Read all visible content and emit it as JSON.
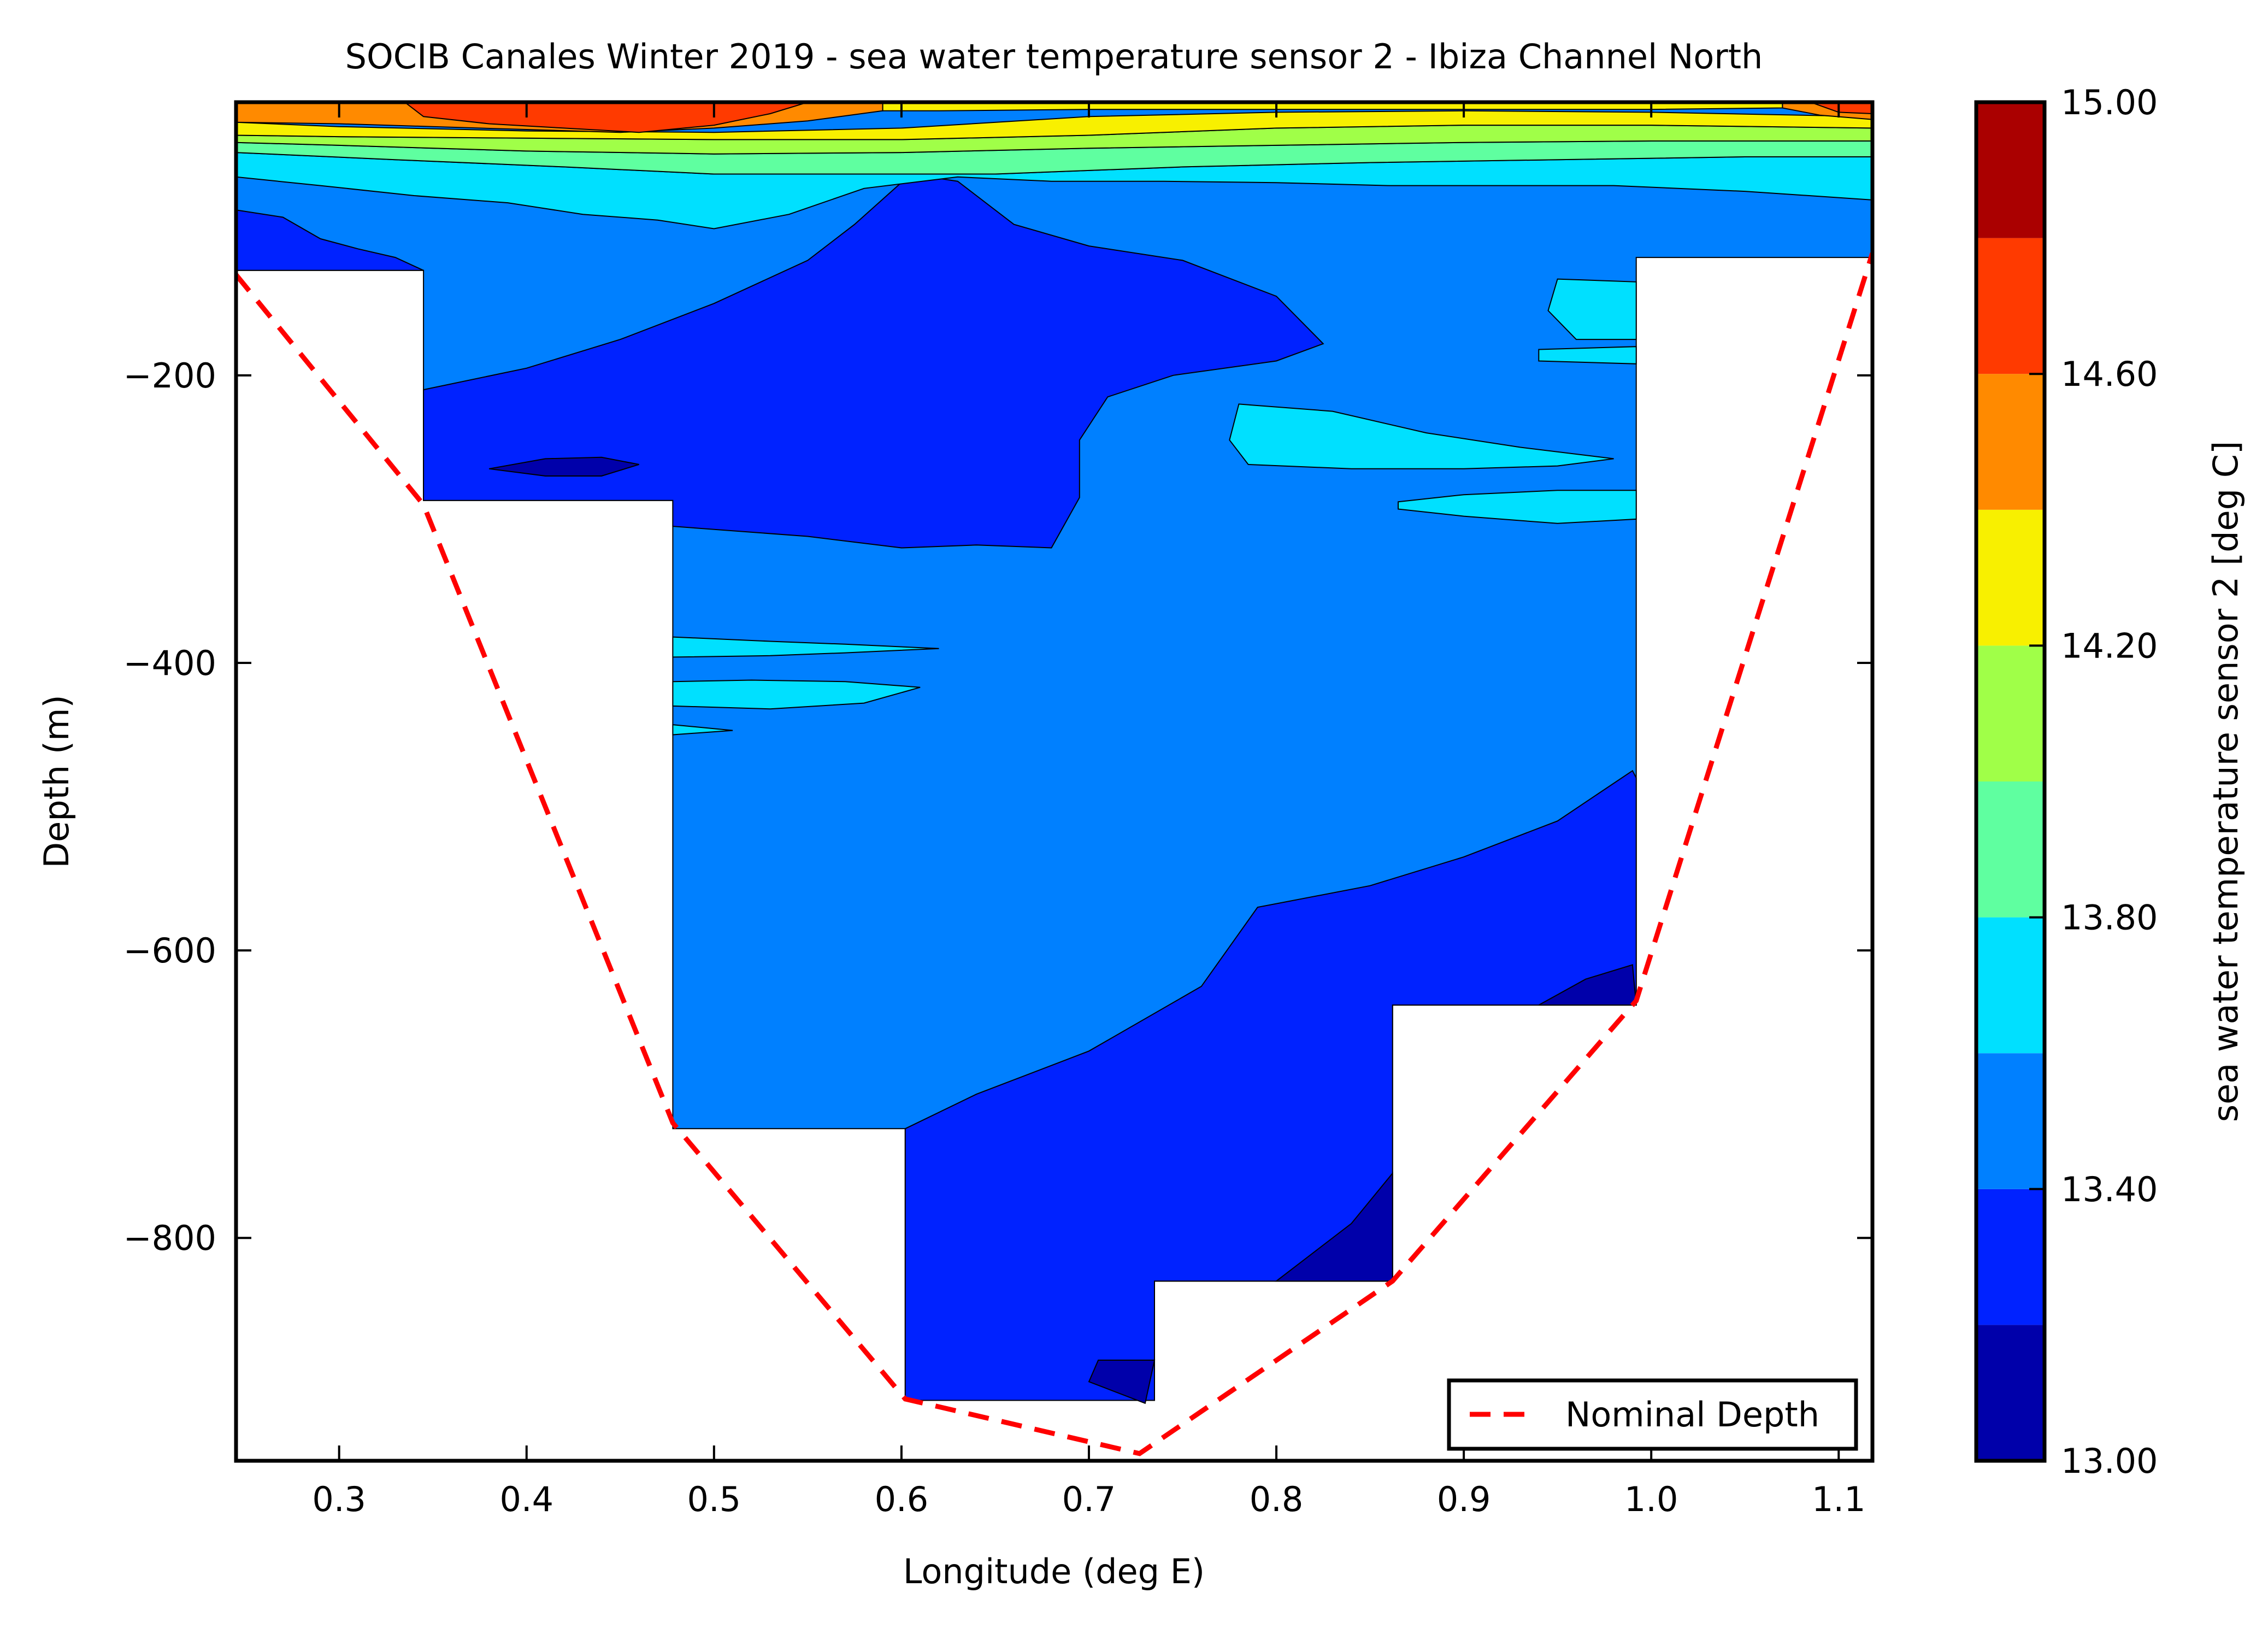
{
  "chart_data": {
    "type": "contour",
    "title": "SOCIB Canales Winter 2019 - sea water temperature sensor 2  -  Ibiza Channel North",
    "xlabel": "Longitude (deg E)",
    "ylabel": "Depth (m)",
    "xlim": [
      0.245,
      1.118
    ],
    "ylim": [
      -955,
      -10
    ],
    "x_ticks": [
      0.3,
      0.4,
      0.5,
      0.6,
      0.7,
      0.8,
      0.9,
      1.0,
      1.1
    ],
    "x_tick_labels": [
      "0.3",
      "0.4",
      "0.5",
      "0.6",
      "0.7",
      "0.8",
      "0.9",
      "1.0",
      "1.1"
    ],
    "y_ticks": [
      -200,
      -400,
      -600,
      -800
    ],
    "y_tick_labels": [
      "−200",
      "−400",
      "−600",
      "−800"
    ],
    "legend": {
      "entries": [
        "Nominal Depth"
      ],
      "location": "lower right"
    },
    "colorbar": {
      "label": "sea water temperature sensor 2 [deg C]",
      "levels": [
        13.0,
        13.2,
        13.4,
        13.6,
        13.8,
        14.0,
        14.2,
        14.4,
        14.6,
        14.8,
        15.0
      ],
      "colors": [
        "#0000aa",
        "#0022ff",
        "#0080ff",
        "#00e0ff",
        "#5fffa0",
        "#a0ff48",
        "#f8f000",
        "#ff8a00",
        "#ff3a00",
        "#aa0000"
      ],
      "tick_values": [
        13.0,
        13.4,
        13.8,
        14.2,
        14.6,
        15.0
      ],
      "tick_labels": [
        "13.00",
        "13.40",
        "13.80",
        "14.20",
        "14.60",
        "15.00"
      ]
    },
    "series": [
      {
        "name": "Nominal Depth",
        "style": "dashed",
        "color": "#ff0000",
        "x": [
          0.245,
          0.345,
          0.478,
          0.602,
          0.727,
          0.862,
          0.992,
          1.118
        ],
        "y": [
          -130,
          -290,
          -720,
          -912,
          -950,
          -830,
          -635,
          -115
        ]
      }
    ],
    "data_columns": [
      {
        "x_range": [
          0.245,
          0.345
        ],
        "max_depth": -127
      },
      {
        "x_range": [
          0.345,
          0.478
        ],
        "max_depth": -287
      },
      {
        "x_range": [
          0.478,
          0.602
        ],
        "max_depth": -724
      },
      {
        "x_range": [
          0.602,
          0.735
        ],
        "max_depth": -913
      },
      {
        "x_range": [
          0.735,
          0.862
        ],
        "max_depth": -830
      },
      {
        "x_range": [
          0.862,
          0.992
        ],
        "max_depth": -638
      },
      {
        "x_range": [
          0.992,
          1.118
        ],
        "max_depth": -118
      }
    ],
    "temperature_field": [
      {
        "band": 13.5,
        "polygon": [
          [
            0.245,
            -10
          ],
          [
            1.118,
            -10
          ],
          [
            1.118,
            -118
          ],
          [
            0.992,
            -118
          ],
          [
            0.992,
            -638
          ],
          [
            0.862,
            -638
          ],
          [
            0.862,
            -830
          ],
          [
            0.735,
            -830
          ],
          [
            0.735,
            -913
          ],
          [
            0.602,
            -913
          ],
          [
            0.602,
            -724
          ],
          [
            0.478,
            -724
          ],
          [
            0.478,
            -287
          ],
          [
            0.345,
            -287
          ],
          [
            0.345,
            -127
          ],
          [
            0.245,
            -127
          ]
        ]
      },
      {
        "band": 13.3,
        "polygon": [
          [
            0.245,
            -85
          ],
          [
            0.27,
            -90
          ],
          [
            0.29,
            -105
          ],
          [
            0.31,
            -112
          ],
          [
            0.33,
            -118
          ],
          [
            0.345,
            -127
          ],
          [
            0.245,
            -127
          ]
        ]
      },
      {
        "band": 13.3,
        "polygon": [
          [
            0.345,
            -210
          ],
          [
            0.4,
            -195
          ],
          [
            0.45,
            -175
          ],
          [
            0.5,
            -150
          ],
          [
            0.55,
            -120
          ],
          [
            0.575,
            -95
          ],
          [
            0.605,
            -60
          ],
          [
            0.63,
            -65
          ],
          [
            0.66,
            -95
          ],
          [
            0.7,
            -110
          ],
          [
            0.75,
            -120
          ],
          [
            0.8,
            -145
          ],
          [
            0.825,
            -178
          ],
          [
            0.8,
            -190
          ],
          [
            0.745,
            -200
          ],
          [
            0.71,
            -215
          ],
          [
            0.695,
            -245
          ],
          [
            0.695,
            -285
          ],
          [
            0.68,
            -320
          ],
          [
            0.64,
            -318
          ],
          [
            0.6,
            -320
          ],
          [
            0.55,
            -312
          ],
          [
            0.478,
            -305
          ],
          [
            0.478,
            -287
          ],
          [
            0.345,
            -287
          ]
        ]
      },
      {
        "band": 13.3,
        "polygon": [
          [
            0.602,
            -724
          ],
          [
            0.64,
            -700
          ],
          [
            0.7,
            -670
          ],
          [
            0.76,
            -625
          ],
          [
            0.79,
            -570
          ],
          [
            0.85,
            -555
          ],
          [
            0.9,
            -535
          ],
          [
            0.95,
            -510
          ],
          [
            0.99,
            -475
          ],
          [
            0.992,
            -480
          ],
          [
            0.992,
            -638
          ],
          [
            0.862,
            -638
          ],
          [
            0.862,
            -830
          ],
          [
            0.735,
            -830
          ],
          [
            0.735,
            -913
          ],
          [
            0.602,
            -913
          ]
        ]
      },
      {
        "band": 13.1,
        "polygon": [
          [
            0.38,
            -265
          ],
          [
            0.41,
            -258
          ],
          [
            0.44,
            -257
          ],
          [
            0.46,
            -262
          ],
          [
            0.44,
            -270
          ],
          [
            0.41,
            -270
          ]
        ]
      },
      {
        "band": 13.1,
        "polygon": [
          [
            0.73,
            -915
          ],
          [
            0.7,
            -900
          ],
          [
            0.705,
            -885
          ],
          [
            0.735,
            -885
          ]
        ]
      },
      {
        "band": 13.1,
        "polygon": [
          [
            0.8,
            -830
          ],
          [
            0.84,
            -790
          ],
          [
            0.862,
            -755
          ],
          [
            0.862,
            -830
          ]
        ]
      },
      {
        "band": 13.1,
        "polygon": [
          [
            0.94,
            -638
          ],
          [
            0.965,
            -620
          ],
          [
            0.99,
            -610
          ],
          [
            0.992,
            -638
          ]
        ]
      },
      {
        "band": 13.7,
        "polygon": [
          [
            0.245,
            -45
          ],
          [
            0.33,
            -50
          ],
          [
            0.42,
            -55
          ],
          [
            0.5,
            -60
          ],
          [
            0.58,
            -60
          ],
          [
            0.65,
            -60
          ],
          [
            0.75,
            -55
          ],
          [
            0.85,
            -52
          ],
          [
            0.95,
            -50
          ],
          [
            1.05,
            -48
          ],
          [
            1.118,
            -48
          ],
          [
            1.118,
            -78
          ],
          [
            1.05,
            -72
          ],
          [
            0.98,
            -68
          ],
          [
            0.92,
            -68
          ],
          [
            0.86,
            -68
          ],
          [
            0.8,
            -66
          ],
          [
            0.74,
            -65
          ],
          [
            0.68,
            -65
          ],
          [
            0.63,
            -62
          ],
          [
            0.58,
            -70
          ],
          [
            0.54,
            -88
          ],
          [
            0.5,
            -98
          ],
          [
            0.47,
            -92
          ],
          [
            0.43,
            -88
          ],
          [
            0.39,
            -80
          ],
          [
            0.34,
            -75
          ],
          [
            0.29,
            -68
          ],
          [
            0.245,
            -62
          ]
        ]
      },
      {
        "band": 13.7,
        "polygon": [
          [
            0.78,
            -220
          ],
          [
            0.83,
            -225
          ],
          [
            0.88,
            -240
          ],
          [
            0.93,
            -250
          ],
          [
            0.98,
            -258
          ],
          [
            0.95,
            -263
          ],
          [
            0.9,
            -265
          ],
          [
            0.84,
            -265
          ],
          [
            0.785,
            -262
          ],
          [
            0.775,
            -245
          ]
        ]
      },
      {
        "band": 13.7,
        "polygon": [
          [
            0.865,
            -288
          ],
          [
            0.9,
            -283
          ],
          [
            0.95,
            -280
          ],
          [
            0.992,
            -280
          ],
          [
            0.992,
            -300
          ],
          [
            0.95,
            -303
          ],
          [
            0.9,
            -298
          ],
          [
            0.865,
            -293
          ]
        ]
      },
      {
        "band": 13.7,
        "polygon": [
          [
            0.95,
            -133
          ],
          [
            0.992,
            -135
          ],
          [
            0.992,
            -175
          ],
          [
            0.96,
            -175
          ],
          [
            0.945,
            -155
          ]
        ]
      },
      {
        "band": 13.7,
        "polygon": [
          [
            0.94,
            -182
          ],
          [
            0.992,
            -180
          ],
          [
            0.992,
            -192
          ],
          [
            0.94,
            -190
          ]
        ]
      },
      {
        "band": 13.7,
        "polygon": [
          [
            0.478,
            -382
          ],
          [
            0.53,
            -385
          ],
          [
            0.57,
            -387
          ],
          [
            0.62,
            -390
          ],
          [
            0.57,
            -393
          ],
          [
            0.53,
            -395
          ],
          [
            0.478,
            -396
          ]
        ]
      },
      {
        "band": 13.7,
        "polygon": [
          [
            0.478,
            -413
          ],
          [
            0.52,
            -412
          ],
          [
            0.57,
            -413
          ],
          [
            0.61,
            -417
          ],
          [
            0.58,
            -428
          ],
          [
            0.53,
            -432
          ],
          [
            0.478,
            -430
          ]
        ]
      },
      {
        "band": 13.7,
        "polygon": [
          [
            0.478,
            -443
          ],
          [
            0.51,
            -447
          ],
          [
            0.478,
            -450
          ]
        ]
      },
      {
        "band": 13.9,
        "polygon": [
          [
            0.245,
            -38
          ],
          [
            0.3,
            -40
          ],
          [
            0.35,
            -42
          ],
          [
            0.4,
            -44
          ],
          [
            0.5,
            -46
          ],
          [
            0.6,
            -45
          ],
          [
            0.7,
            -42
          ],
          [
            0.8,
            -40
          ],
          [
            0.9,
            -38
          ],
          [
            1.0,
            -37
          ],
          [
            1.118,
            -37
          ],
          [
            1.118,
            -48
          ],
          [
            1.05,
            -48
          ],
          [
            0.95,
            -50
          ],
          [
            0.85,
            -52
          ],
          [
            0.75,
            -55
          ],
          [
            0.65,
            -60
          ],
          [
            0.58,
            -60
          ],
          [
            0.5,
            -60
          ],
          [
            0.42,
            -55
          ],
          [
            0.33,
            -50
          ],
          [
            0.245,
            -45
          ]
        ]
      },
      {
        "band": 14.1,
        "polygon": [
          [
            0.245,
            -33
          ],
          [
            0.3,
            -34
          ],
          [
            0.4,
            -35
          ],
          [
            0.5,
            -36
          ],
          [
            0.6,
            -36
          ],
          [
            0.7,
            -33
          ],
          [
            0.8,
            -28
          ],
          [
            0.9,
            -26
          ],
          [
            1.0,
            -26
          ],
          [
            1.118,
            -28
          ],
          [
            1.118,
            -37
          ],
          [
            1.0,
            -37
          ],
          [
            0.9,
            -38
          ],
          [
            0.8,
            -40
          ],
          [
            0.7,
            -42
          ],
          [
            0.6,
            -45
          ],
          [
            0.5,
            -46
          ],
          [
            0.4,
            -44
          ],
          [
            0.3,
            -40
          ],
          [
            0.245,
            -38
          ]
        ]
      },
      {
        "band": 14.3,
        "polygon": [
          [
            0.245,
            -24
          ],
          [
            0.3,
            -27
          ],
          [
            0.4,
            -30
          ],
          [
            0.5,
            -31
          ],
          [
            0.6,
            -28
          ],
          [
            0.7,
            -20
          ],
          [
            0.8,
            -17
          ],
          [
            0.9,
            -16
          ],
          [
            1.0,
            -17
          ],
          [
            1.118,
            -20
          ],
          [
            1.118,
            -28
          ],
          [
            1.0,
            -26
          ],
          [
            0.9,
            -26
          ],
          [
            0.8,
            -28
          ],
          [
            0.7,
            -33
          ],
          [
            0.6,
            -36
          ],
          [
            0.5,
            -36
          ],
          [
            0.4,
            -35
          ],
          [
            0.3,
            -34
          ],
          [
            0.245,
            -33
          ]
        ]
      },
      {
        "band": 14.5,
        "polygon": [
          [
            0.245,
            -10
          ],
          [
            0.59,
            -10
          ],
          [
            0.59,
            -16
          ],
          [
            0.55,
            -23
          ],
          [
            0.5,
            -28
          ],
          [
            0.45,
            -31
          ],
          [
            0.4,
            -29
          ],
          [
            0.35,
            -27
          ],
          [
            0.3,
            -25
          ],
          [
            0.245,
            -24
          ]
        ]
      },
      {
        "band": 14.5,
        "polygon": [
          [
            1.07,
            -10
          ],
          [
            1.118,
            -10
          ],
          [
            1.118,
            -22
          ],
          [
            1.09,
            -19
          ],
          [
            1.07,
            -14
          ]
        ]
      },
      {
        "band": 14.3,
        "polygon": [
          [
            0.59,
            -10
          ],
          [
            1.07,
            -10
          ],
          [
            1.07,
            -14
          ],
          [
            1.0,
            -15
          ],
          [
            0.9,
            -15
          ],
          [
            0.8,
            -15
          ],
          [
            0.7,
            -15
          ],
          [
            0.62,
            -16
          ],
          [
            0.59,
            -16
          ]
        ]
      },
      {
        "band": 14.7,
        "polygon": [
          [
            0.335,
            -10
          ],
          [
            0.55,
            -10
          ],
          [
            0.53,
            -18
          ],
          [
            0.5,
            -26
          ],
          [
            0.46,
            -31
          ],
          [
            0.42,
            -28
          ],
          [
            0.38,
            -25
          ],
          [
            0.345,
            -20
          ]
        ]
      },
      {
        "band": 14.7,
        "polygon": [
          [
            1.085,
            -10
          ],
          [
            1.118,
            -10
          ],
          [
            1.118,
            -18
          ],
          [
            1.1,
            -17
          ]
        ]
      }
    ]
  }
}
